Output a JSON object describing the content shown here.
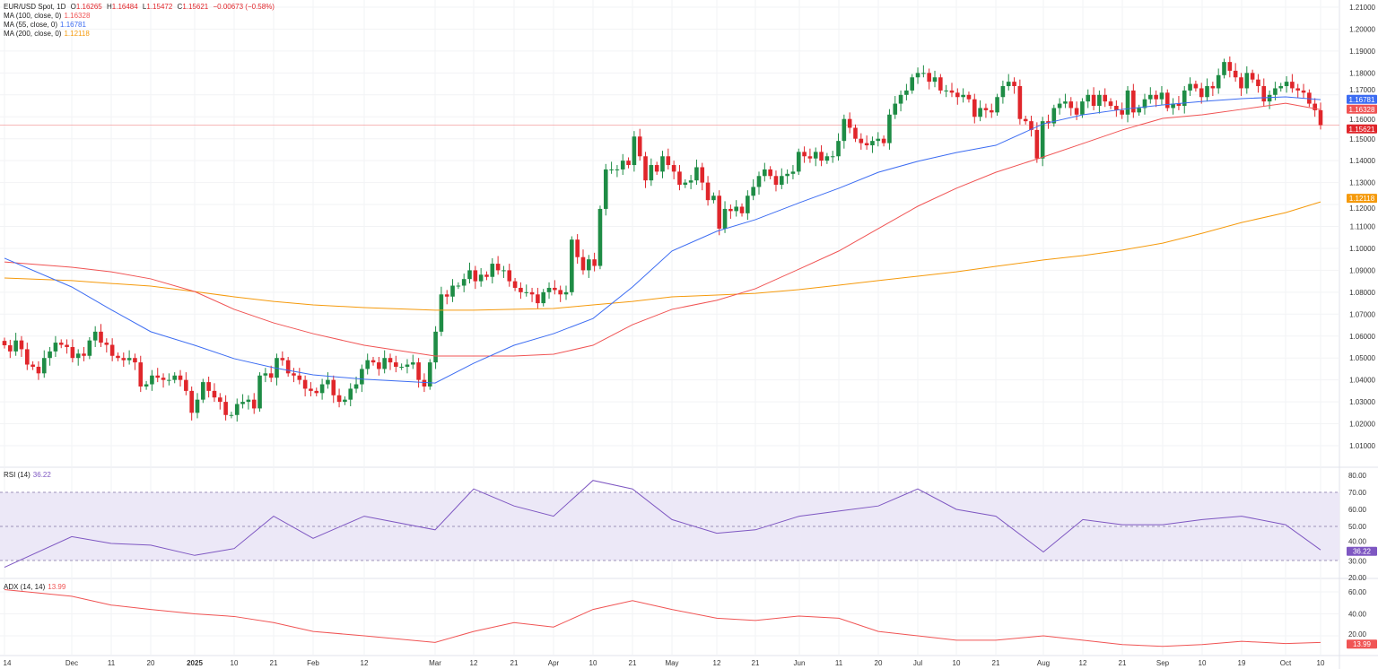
{
  "header": {
    "symbol": "EUR/USD Spot, 1D",
    "open_label": "O",
    "open": "1.16265",
    "high_label": "H",
    "high": "1.16484",
    "low_label": "L",
    "low": "1.15472",
    "close_label": "C",
    "close": "1.15621",
    "change": "−0.00673 (−0.58%)"
  },
  "indicators": [
    {
      "label": "MA (100, close, 0)",
      "value": "1.16328",
      "color": "#f05454"
    },
    {
      "label": "MA (55, close, 0)",
      "value": "1.16781",
      "color": "#3d6df2"
    },
    {
      "label": "MA (200, close, 0)",
      "value": "1.12118",
      "color": "#f59a0c"
    }
  ],
  "rsi": {
    "label": "RSI (14)",
    "value": "36.22",
    "color": "#7e57c2"
  },
  "adx": {
    "label": "ADX (14, 14)",
    "value": "13.99",
    "color": "#f05454"
  },
  "colors": {
    "up": "#1e8c45",
    "down": "#e0262b"
  },
  "chart_data": {
    "type": "candlestick",
    "ylim": [
      1.005,
      1.21
    ],
    "y_ticks": [
      "1.21000",
      "1.20000",
      "1.19000",
      "1.18000",
      "1.17000",
      "1.16000",
      "1.15000",
      "1.14000",
      "1.13000",
      "1.12000",
      "1.11000",
      "1.10000",
      "1.09000",
      "1.08000",
      "1.07000",
      "1.06000",
      "1.05000",
      "1.04000",
      "1.03000",
      "1.02000",
      "1.01000"
    ],
    "x_ticks": [
      "14",
      "Dec",
      "11",
      "20",
      "2025",
      "10",
      "21",
      "Feb",
      "12",
      "Mar",
      "12",
      "21",
      "Apr",
      "10",
      "21",
      "May",
      "12",
      "21",
      "Jun",
      "11",
      "20",
      "Jul",
      "10",
      "21",
      "Aug",
      "12",
      "21",
      "Sep",
      "10",
      "19",
      "Oct",
      "10"
    ],
    "closes": [
      1.0558,
      1.053,
      1.058,
      1.054,
      1.047,
      1.046,
      1.043,
      1.05,
      1.053,
      1.057,
      1.056,
      1.055,
      1.05,
      1.052,
      1.051,
      1.058,
      1.062,
      1.057,
      1.056,
      1.051,
      1.05,
      1.049,
      1.05,
      1.048,
      1.037,
      1.038,
      1.042,
      1.041,
      1.04,
      1.04,
      1.042,
      1.04,
      1.035,
      1.025,
      1.031,
      1.039,
      1.035,
      1.032,
      1.03,
      1.024,
      1.024,
      1.029,
      1.03,
      1.031,
      1.027,
      1.042,
      1.043,
      1.041,
      1.05,
      1.049,
      1.043,
      1.042,
      1.04,
      1.036,
      1.035,
      1.034,
      1.038,
      1.04,
      1.033,
      1.03,
      1.031,
      1.036,
      1.038,
      1.045,
      1.049,
      1.048,
      1.045,
      1.05,
      1.048,
      1.046,
      1.046,
      1.047,
      1.048,
      1.04,
      1.037,
      1.048,
      1.062,
      1.079,
      1.078,
      1.083,
      1.083,
      1.086,
      1.09,
      1.085,
      1.088,
      1.087,
      1.093,
      1.09,
      1.09,
      1.085,
      1.082,
      1.08,
      1.08,
      1.079,
      1.075,
      1.08,
      1.082,
      1.081,
      1.079,
      1.08,
      1.104,
      1.096,
      1.09,
      1.095,
      1.092,
      1.118,
      1.136,
      1.136,
      1.136,
      1.14,
      1.138,
      1.151,
      1.142,
      1.131,
      1.138,
      1.135,
      1.142,
      1.138,
      1.135,
      1.129,
      1.13,
      1.131,
      1.137,
      1.13,
      1.122,
      1.124,
      1.109,
      1.118,
      1.117,
      1.119,
      1.116,
      1.124,
      1.128,
      1.133,
      1.136,
      1.133,
      1.129,
      1.133,
      1.134,
      1.135,
      1.144,
      1.142,
      1.141,
      1.144,
      1.14,
      1.142,
      1.142,
      1.149,
      1.159,
      1.155,
      1.15,
      1.148,
      1.147,
      1.149,
      1.15,
      1.148,
      1.161,
      1.166,
      1.17,
      1.172,
      1.178,
      1.18,
      1.18,
      1.176,
      1.178,
      1.172,
      1.172,
      1.171,
      1.169,
      1.17,
      1.168,
      1.16,
      1.164,
      1.163,
      1.162,
      1.169,
      1.174,
      1.176,
      1.174,
      1.159,
      1.158,
      1.154,
      1.141,
      1.158,
      1.157,
      1.164,
      1.166,
      1.167,
      1.164,
      1.161,
      1.167,
      1.17,
      1.165,
      1.17,
      1.167,
      1.165,
      1.163,
      1.161,
      1.172,
      1.162,
      1.164,
      1.168,
      1.17,
      1.168,
      1.171,
      1.164,
      1.166,
      1.165,
      1.172,
      1.175,
      1.173,
      1.169,
      1.174,
      1.173,
      1.179,
      1.185,
      1.181,
      1.178,
      1.173,
      1.18,
      1.177,
      1.174,
      1.167,
      1.17,
      1.173,
      1.174,
      1.176,
      1.173,
      1.172,
      1.171,
      1.166,
      1.163,
      1.15621
    ],
    "last_price": 1.15621,
    "ma_at_ticks": {
      "ma55": [
        1.0955,
        1.0824,
        1.072,
        1.062,
        1.0558,
        1.0497,
        1.0456,
        1.0423,
        1.0403,
        1.0386,
        1.0476,
        1.0558,
        1.0611,
        1.068,
        1.0824,
        1.0988,
        1.1078,
        1.1131,
        1.1208,
        1.1274,
        1.1347,
        1.1397,
        1.1437,
        1.147,
        1.1568,
        1.1609,
        1.1634,
        1.1654,
        1.167,
        1.1683,
        1.1691,
        1.16781
      ],
      "ma100": [
        1.0938,
        1.0914,
        1.0893,
        1.0861,
        1.0803,
        1.0722,
        1.066,
        1.0611,
        1.0558,
        1.0509,
        1.0509,
        1.0509,
        1.0517,
        1.0558,
        1.0652,
        1.0722,
        1.0763,
        1.0816,
        1.0906,
        1.0988,
        1.109,
        1.1192,
        1.1274,
        1.1347,
        1.1417,
        1.1478,
        1.154,
        1.1593,
        1.1609,
        1.1634,
        1.1662,
        1.16328
      ],
      "ma200": [
        1.0865,
        1.0853,
        1.084,
        1.0828,
        1.0803,
        1.0779,
        1.0758,
        1.0742,
        1.073,
        1.0718,
        1.0718,
        1.0722,
        1.0726,
        1.0742,
        1.0758,
        1.0779,
        1.0787,
        1.0795,
        1.0812,
        1.0832,
        1.0853,
        1.0873,
        1.0893,
        1.0918,
        1.0947,
        1.0967,
        1.0992,
        1.1024,
        1.1069,
        1.1118,
        1.1163,
        1.12118
      ]
    },
    "rsi_at_ticks": [
      26,
      44,
      40,
      39,
      33,
      37,
      56,
      43,
      56,
      48,
      72,
      62,
      56,
      77,
      72,
      54,
      46,
      48,
      56,
      59,
      62,
      72,
      60,
      56,
      35,
      54,
      51,
      51,
      54,
      56,
      51,
      36.22
    ],
    "rsi_ticks": [
      "80.00",
      "70.00",
      "60.00",
      "50.00",
      "40.00",
      "30.00",
      "20.00"
    ],
    "adx_at_ticks": [
      62,
      56,
      48,
      44,
      40,
      37.6,
      32,
      24,
      20,
      14,
      24,
      32,
      28,
      44,
      52,
      44,
      36,
      34,
      38,
      36,
      24,
      20,
      16,
      16,
      20,
      16,
      12,
      10.4,
      12,
      15,
      13,
      13.99
    ],
    "adx_ticks": [
      "60.00",
      "40.00",
      "20.00"
    ]
  }
}
